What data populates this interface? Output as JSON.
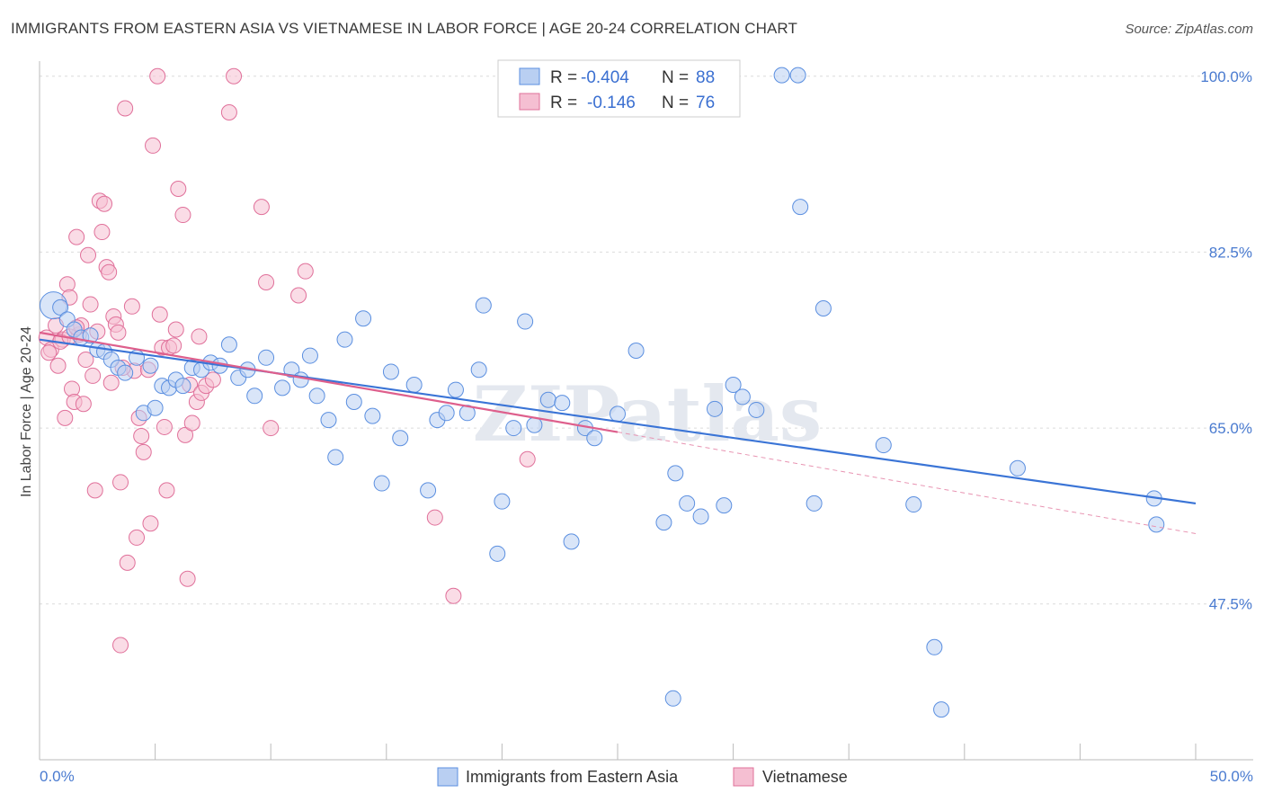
{
  "title": "IMMIGRANTS FROM EASTERN ASIA VS VIETNAMESE IN LABOR FORCE | AGE 20-24 CORRELATION CHART",
  "source": "Source: ZipAtlas.com",
  "watermark": "ZIPatlas",
  "colors": {
    "blue": "#5b8fe0",
    "blue_fill": "#b9cff2",
    "pink": "#e0709a",
    "pink_fill": "#f5bfd2",
    "axis_text": "#4a7bd0"
  },
  "legend": {
    "blue": {
      "r_label": "R = ",
      "r_value": "-0.404",
      "n_label": "N = ",
      "n_value": "88"
    },
    "pink": {
      "r_label": "R = ",
      "r_value": "-0.146",
      "n_label": "N = ",
      "n_value": "76"
    }
  },
  "chart_data": {
    "type": "scatter",
    "ylabel": "In Labor Force | Age 20-24",
    "xlim": [
      0,
      50
    ],
    "ylim": [
      32,
      101.5
    ],
    "x_tick_labels": [
      "0.0%",
      "50.0%"
    ],
    "y_ticks": [
      {
        "value": 100.0,
        "label": "100.0%"
      },
      {
        "value": 82.5,
        "label": "82.5%"
      },
      {
        "value": 65.0,
        "label": "65.0%"
      },
      {
        "value": 47.5,
        "label": "47.5%"
      }
    ],
    "series": [
      {
        "name": "Immigrants from Eastern Asia",
        "trend": {
          "x0": 0.0,
          "y0": 73.8,
          "x1": 50.0,
          "y1": 57.5
        },
        "points": [
          [
            0.6,
            77.2
          ],
          [
            0.9,
            77.0
          ],
          [
            1.2,
            75.8
          ],
          [
            1.5,
            74.8
          ],
          [
            1.8,
            74.0
          ],
          [
            2.2,
            74.2
          ],
          [
            2.5,
            72.8
          ],
          [
            2.8,
            72.6
          ],
          [
            3.1,
            71.8
          ],
          [
            3.4,
            71.0
          ],
          [
            3.7,
            70.5
          ],
          [
            4.2,
            72.0
          ],
          [
            4.5,
            66.5
          ],
          [
            4.8,
            71.2
          ],
          [
            5.0,
            67.0
          ],
          [
            5.3,
            69.2
          ],
          [
            5.6,
            69.0
          ],
          [
            5.9,
            69.8
          ],
          [
            6.2,
            69.2
          ],
          [
            6.6,
            71.0
          ],
          [
            7.0,
            70.8
          ],
          [
            7.4,
            71.5
          ],
          [
            7.8,
            71.2
          ],
          [
            8.2,
            73.3
          ],
          [
            8.6,
            70.0
          ],
          [
            9.0,
            70.8
          ],
          [
            9.3,
            68.2
          ],
          [
            9.8,
            72.0
          ],
          [
            10.5,
            69.0
          ],
          [
            10.9,
            70.8
          ],
          [
            11.3,
            69.8
          ],
          [
            11.7,
            72.2
          ],
          [
            12.0,
            68.2
          ],
          [
            12.5,
            65.8
          ],
          [
            12.8,
            62.1
          ],
          [
            13.2,
            73.8
          ],
          [
            13.6,
            67.6
          ],
          [
            14.0,
            75.9
          ],
          [
            14.4,
            66.2
          ],
          [
            14.8,
            59.5
          ],
          [
            15.2,
            70.6
          ],
          [
            15.6,
            64.0
          ],
          [
            16.2,
            69.3
          ],
          [
            16.8,
            58.8
          ],
          [
            17.2,
            65.8
          ],
          [
            17.6,
            66.5
          ],
          [
            18.0,
            68.8
          ],
          [
            18.5,
            66.5
          ],
          [
            19.0,
            70.8
          ],
          [
            19.2,
            77.2
          ],
          [
            19.8,
            52.5
          ],
          [
            20.0,
            57.7
          ],
          [
            20.5,
            65.0
          ],
          [
            21.0,
            75.6
          ],
          [
            21.4,
            65.3
          ],
          [
            22.0,
            67.8
          ],
          [
            22.6,
            67.5
          ],
          [
            23.0,
            53.7
          ],
          [
            23.6,
            65.0
          ],
          [
            24.0,
            64.0
          ],
          [
            25.0,
            66.4
          ],
          [
            25.8,
            72.7
          ],
          [
            27.0,
            55.6
          ],
          [
            27.5,
            60.5
          ],
          [
            28.0,
            57.5
          ],
          [
            28.6,
            56.2
          ],
          [
            29.2,
            66.9
          ],
          [
            29.6,
            57.3
          ],
          [
            30.0,
            69.3
          ],
          [
            30.4,
            68.1
          ],
          [
            31.0,
            66.8
          ],
          [
            32.1,
            100.1
          ],
          [
            32.8,
            100.1
          ],
          [
            32.9,
            87.0
          ],
          [
            33.5,
            57.5
          ],
          [
            33.9,
            76.9
          ],
          [
            36.5,
            63.3
          ],
          [
            37.8,
            57.4
          ],
          [
            38.7,
            43.2
          ],
          [
            39.0,
            37.0
          ],
          [
            42.3,
            61.0
          ],
          [
            27.4,
            38.1
          ],
          [
            48.2,
            58.0
          ],
          [
            48.3,
            55.4
          ]
        ]
      },
      {
        "name": "Vietnamese",
        "trend": {
          "x0": 0.0,
          "y0": 74.5,
          "x1": 25.0,
          "y1": 64.6
        },
        "trend_ext": {
          "x0": 25.0,
          "y0": 64.6,
          "x1": 50.0,
          "y1": 54.5
        },
        "points": [
          [
            0.3,
            74.0
          ],
          [
            0.5,
            72.8
          ],
          [
            0.7,
            75.2
          ],
          [
            0.8,
            71.2
          ],
          [
            1.0,
            73.8
          ],
          [
            1.1,
            66.0
          ],
          [
            1.2,
            79.3
          ],
          [
            1.3,
            78.0
          ],
          [
            1.4,
            68.9
          ],
          [
            1.5,
            67.6
          ],
          [
            1.7,
            74.3
          ],
          [
            1.6,
            84.0
          ],
          [
            1.8,
            75.2
          ],
          [
            1.9,
            67.4
          ],
          [
            2.0,
            71.8
          ],
          [
            2.1,
            82.2
          ],
          [
            2.2,
            77.3
          ],
          [
            2.3,
            70.2
          ],
          [
            2.4,
            58.8
          ],
          [
            2.6,
            87.6
          ],
          [
            2.7,
            84.5
          ],
          [
            2.8,
            87.3
          ],
          [
            2.9,
            81.0
          ],
          [
            3.0,
            80.5
          ],
          [
            3.1,
            69.5
          ],
          [
            3.2,
            76.1
          ],
          [
            3.3,
            75.3
          ],
          [
            3.4,
            74.5
          ],
          [
            3.5,
            59.6
          ],
          [
            3.7,
            96.8
          ],
          [
            3.8,
            51.6
          ],
          [
            4.0,
            77.1
          ],
          [
            4.1,
            70.7
          ],
          [
            4.2,
            54.1
          ],
          [
            4.3,
            66.0
          ],
          [
            4.4,
            64.2
          ],
          [
            4.5,
            62.6
          ],
          [
            4.7,
            70.8
          ],
          [
            4.8,
            55.5
          ],
          [
            4.9,
            93.1
          ],
          [
            5.1,
            100.0
          ],
          [
            5.2,
            76.3
          ],
          [
            5.3,
            73.0
          ],
          [
            5.4,
            65.1
          ],
          [
            5.5,
            58.8
          ],
          [
            5.6,
            73.0
          ],
          [
            5.9,
            74.8
          ],
          [
            6.0,
            88.8
          ],
          [
            6.2,
            86.2
          ],
          [
            6.3,
            64.3
          ],
          [
            6.4,
            50.0
          ],
          [
            6.5,
            69.3
          ],
          [
            6.6,
            65.5
          ],
          [
            6.8,
            67.6
          ],
          [
            7.0,
            68.5
          ],
          [
            7.2,
            69.2
          ],
          [
            8.2,
            96.4
          ],
          [
            8.4,
            100.0
          ],
          [
            9.6,
            87.0
          ],
          [
            9.8,
            79.5
          ],
          [
            10.0,
            65.0
          ],
          [
            11.2,
            78.2
          ],
          [
            11.5,
            80.6
          ],
          [
            3.5,
            43.4
          ],
          [
            17.1,
            56.1
          ],
          [
            17.9,
            48.3
          ],
          [
            21.1,
            61.9
          ],
          [
            0.4,
            72.5
          ],
          [
            0.9,
            73.6
          ],
          [
            1.3,
            74.1
          ],
          [
            2.5,
            74.6
          ],
          [
            3.6,
            71.0
          ],
          [
            5.8,
            73.2
          ],
          [
            7.5,
            69.8
          ],
          [
            1.6,
            75.0
          ],
          [
            6.9,
            74.1
          ]
        ]
      }
    ]
  },
  "bottom_legend": [
    {
      "label": "Immigrants from Eastern Asia"
    },
    {
      "label": "Vietnamese"
    }
  ]
}
